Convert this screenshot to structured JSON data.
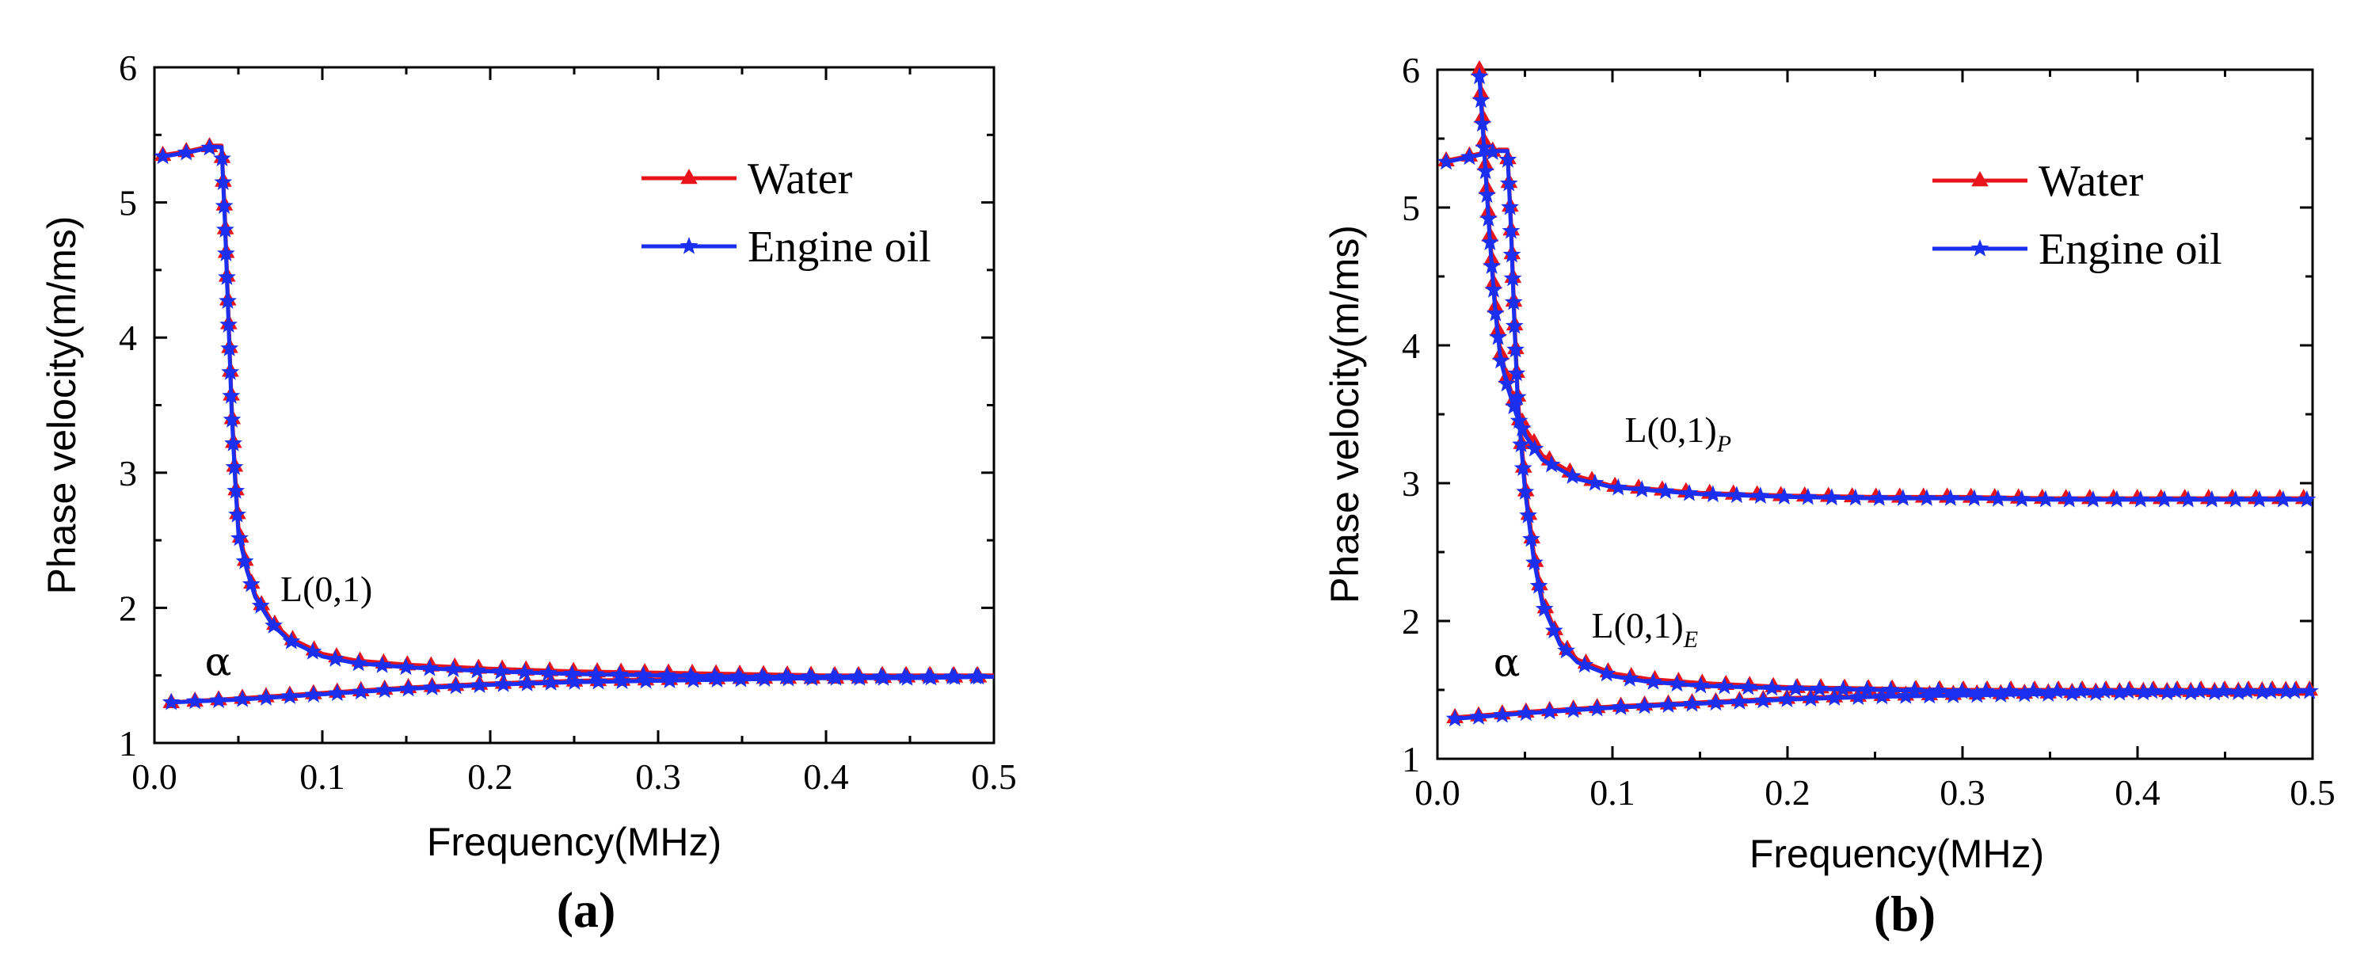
{
  "colors": {
    "water": "#e8141c",
    "engine_oil": "#1a2ff0",
    "axis": "#000000"
  },
  "chart_data": [
    {
      "type": "line",
      "panel_label": "(a)",
      "xlabel": "Frequency(MHz)",
      "ylabel": "Phase velocity(m/ms)",
      "xlim": [
        0.0,
        0.5
      ],
      "ylim": [
        1,
        6
      ],
      "xticks": [
        0.0,
        0.1,
        0.2,
        0.3,
        0.4,
        0.5
      ],
      "xtick_labels": [
        "0.0",
        "0.1",
        "0.2",
        "0.3",
        "0.4",
        "0.5"
      ],
      "yticks": [
        1,
        2,
        3,
        4,
        5,
        6
      ],
      "ytick_labels": [
        "1",
        "2",
        "3",
        "4",
        "5",
        "6"
      ],
      "legend": {
        "position": "top-right",
        "entries": [
          "Water",
          "Engine oil"
        ]
      },
      "annotations": [
        {
          "text": "L(0,1)",
          "sub": "",
          "x": 0.075,
          "y": 2.05
        },
        {
          "text": "α",
          "sub": "",
          "x": 0.03,
          "y": 1.5
        }
      ],
      "series": [
        {
          "name": "Water",
          "marker": "triangle",
          "branches": [
            {
              "x": [
                0.005,
                0.02,
                0.035,
                0.04,
                0.042,
                0.044,
                0.046,
                0.048,
                0.05,
                0.055,
                0.06,
                0.07,
                0.08,
                0.1,
                0.12,
                0.15,
                0.2,
                0.25,
                0.3,
                0.35,
                0.4,
                0.45,
                0.5
              ],
              "y": [
                5.35,
                5.38,
                5.42,
                5.42,
                4.9,
                4.2,
                3.5,
                3.0,
                2.6,
                2.3,
                2.1,
                1.9,
                1.78,
                1.66,
                1.61,
                1.58,
                1.55,
                1.53,
                1.52,
                1.51,
                1.5,
                1.5,
                1.5
              ]
            },
            {
              "x": [
                0.01,
                0.05,
                0.1,
                0.15,
                0.2,
                0.25,
                0.3,
                0.35,
                0.4,
                0.45,
                0.5
              ],
              "y": [
                1.3,
                1.33,
                1.37,
                1.41,
                1.44,
                1.46,
                1.47,
                1.48,
                1.48,
                1.49,
                1.49
              ]
            }
          ]
        },
        {
          "name": "Engine oil",
          "marker": "star",
          "branches": [
            {
              "x": [
                0.005,
                0.02,
                0.035,
                0.04,
                0.042,
                0.044,
                0.046,
                0.048,
                0.05,
                0.055,
                0.06,
                0.07,
                0.08,
                0.1,
                0.12,
                0.15,
                0.2,
                0.25,
                0.3,
                0.35,
                0.4,
                0.45,
                0.5
              ],
              "y": [
                5.34,
                5.37,
                5.41,
                5.41,
                4.85,
                4.15,
                3.45,
                2.95,
                2.55,
                2.28,
                2.08,
                1.88,
                1.76,
                1.64,
                1.59,
                1.56,
                1.53,
                1.51,
                1.5,
                1.49,
                1.49,
                1.49,
                1.49
              ]
            },
            {
              "x": [
                0.01,
                0.05,
                0.1,
                0.15,
                0.2,
                0.25,
                0.3,
                0.35,
                0.4,
                0.45,
                0.5
              ],
              "y": [
                1.3,
                1.32,
                1.36,
                1.4,
                1.43,
                1.45,
                1.46,
                1.47,
                1.48,
                1.48,
                1.49
              ]
            }
          ]
        }
      ]
    },
    {
      "type": "line",
      "panel_label": "(b)",
      "xlabel": "Frequency(MHz)",
      "ylabel": "Phase velocity(m/ms)",
      "xlim": [
        0.0,
        0.5
      ],
      "ylim": [
        1,
        6
      ],
      "xticks": [
        0.0,
        0.1,
        0.2,
        0.3,
        0.4,
        0.5
      ],
      "xtick_labels": [
        "0.0",
        "0.1",
        "0.2",
        "0.3",
        "0.4",
        "0.5"
      ],
      "yticks": [
        1,
        2,
        3,
        4,
        5,
        6
      ],
      "ytick_labels": [
        "1",
        "2",
        "3",
        "4",
        "5",
        "6"
      ],
      "legend": {
        "position": "top-right",
        "entries": [
          "Water",
          "Engine oil"
        ]
      },
      "annotations": [
        {
          "text": "L(0,1)",
          "sub": "P",
          "x": 0.107,
          "y": 3.3
        },
        {
          "text": "L(0,1)",
          "sub": "E",
          "x": 0.088,
          "y": 1.88
        },
        {
          "text": "α",
          "sub": "",
          "x": 0.032,
          "y": 1.6
        }
      ],
      "series": [
        {
          "name": "Water",
          "marker": "triangle",
          "branches": [
            {
              "x": [
                0.005,
                0.02,
                0.035,
                0.04,
                0.042,
                0.044,
                0.046,
                0.05,
                0.055,
                0.06,
                0.07,
                0.08,
                0.1,
                0.12,
                0.15,
                0.2,
                0.25,
                0.3,
                0.35,
                0.4,
                0.45,
                0.5
              ],
              "y": [
                5.34,
                5.38,
                5.42,
                5.42,
                4.9,
                4.2,
                3.6,
                3.0,
                2.5,
                2.15,
                1.85,
                1.72,
                1.62,
                1.58,
                1.55,
                1.52,
                1.51,
                1.5,
                1.5,
                1.5,
                1.5,
                1.5
              ]
            },
            {
              "x": [
                0.024,
                0.027,
                0.03,
                0.033,
                0.036,
                0.04,
                0.045,
                0.05,
                0.06,
                0.08,
                0.1,
                0.15,
                0.2,
                0.25,
                0.3,
                0.35,
                0.4,
                0.45,
                0.5
              ],
              "y": [
                6.0,
                5.4,
                4.8,
                4.3,
                3.95,
                3.75,
                3.55,
                3.4,
                3.2,
                3.05,
                2.98,
                2.93,
                2.91,
                2.9,
                2.9,
                2.89,
                2.89,
                2.89,
                2.89
              ]
            },
            {
              "x": [
                0.01,
                0.05,
                0.1,
                0.15,
                0.2,
                0.25,
                0.3,
                0.35,
                0.4,
                0.45,
                0.5
              ],
              "y": [
                1.3,
                1.34,
                1.38,
                1.41,
                1.44,
                1.46,
                1.47,
                1.48,
                1.49,
                1.49,
                1.5
              ]
            }
          ]
        },
        {
          "name": "Engine oil",
          "marker": "star",
          "branches": [
            {
              "x": [
                0.005,
                0.02,
                0.035,
                0.04,
                0.042,
                0.044,
                0.046,
                0.05,
                0.055,
                0.06,
                0.07,
                0.08,
                0.1,
                0.12,
                0.15,
                0.2,
                0.25,
                0.3,
                0.35,
                0.4,
                0.45,
                0.5
              ],
              "y": [
                5.33,
                5.37,
                5.41,
                5.41,
                4.85,
                4.15,
                3.55,
                2.95,
                2.45,
                2.12,
                1.83,
                1.7,
                1.6,
                1.56,
                1.53,
                1.51,
                1.5,
                1.49,
                1.49,
                1.49,
                1.49,
                1.49
              ]
            },
            {
              "x": [
                0.024,
                0.027,
                0.03,
                0.033,
                0.036,
                0.04,
                0.045,
                0.05,
                0.06,
                0.08,
                0.1,
                0.15,
                0.2,
                0.25,
                0.3,
                0.35,
                0.4,
                0.45,
                0.5
              ],
              "y": [
                5.95,
                5.35,
                4.75,
                4.25,
                3.9,
                3.7,
                3.5,
                3.35,
                3.17,
                3.03,
                2.97,
                2.92,
                2.9,
                2.89,
                2.89,
                2.88,
                2.88,
                2.88,
                2.88
              ]
            },
            {
              "x": [
                0.01,
                0.05,
                0.1,
                0.15,
                0.2,
                0.25,
                0.3,
                0.35,
                0.4,
                0.45,
                0.5
              ],
              "y": [
                1.29,
                1.33,
                1.37,
                1.4,
                1.43,
                1.45,
                1.46,
                1.47,
                1.48,
                1.48,
                1.49
              ]
            }
          ]
        }
      ]
    }
  ]
}
